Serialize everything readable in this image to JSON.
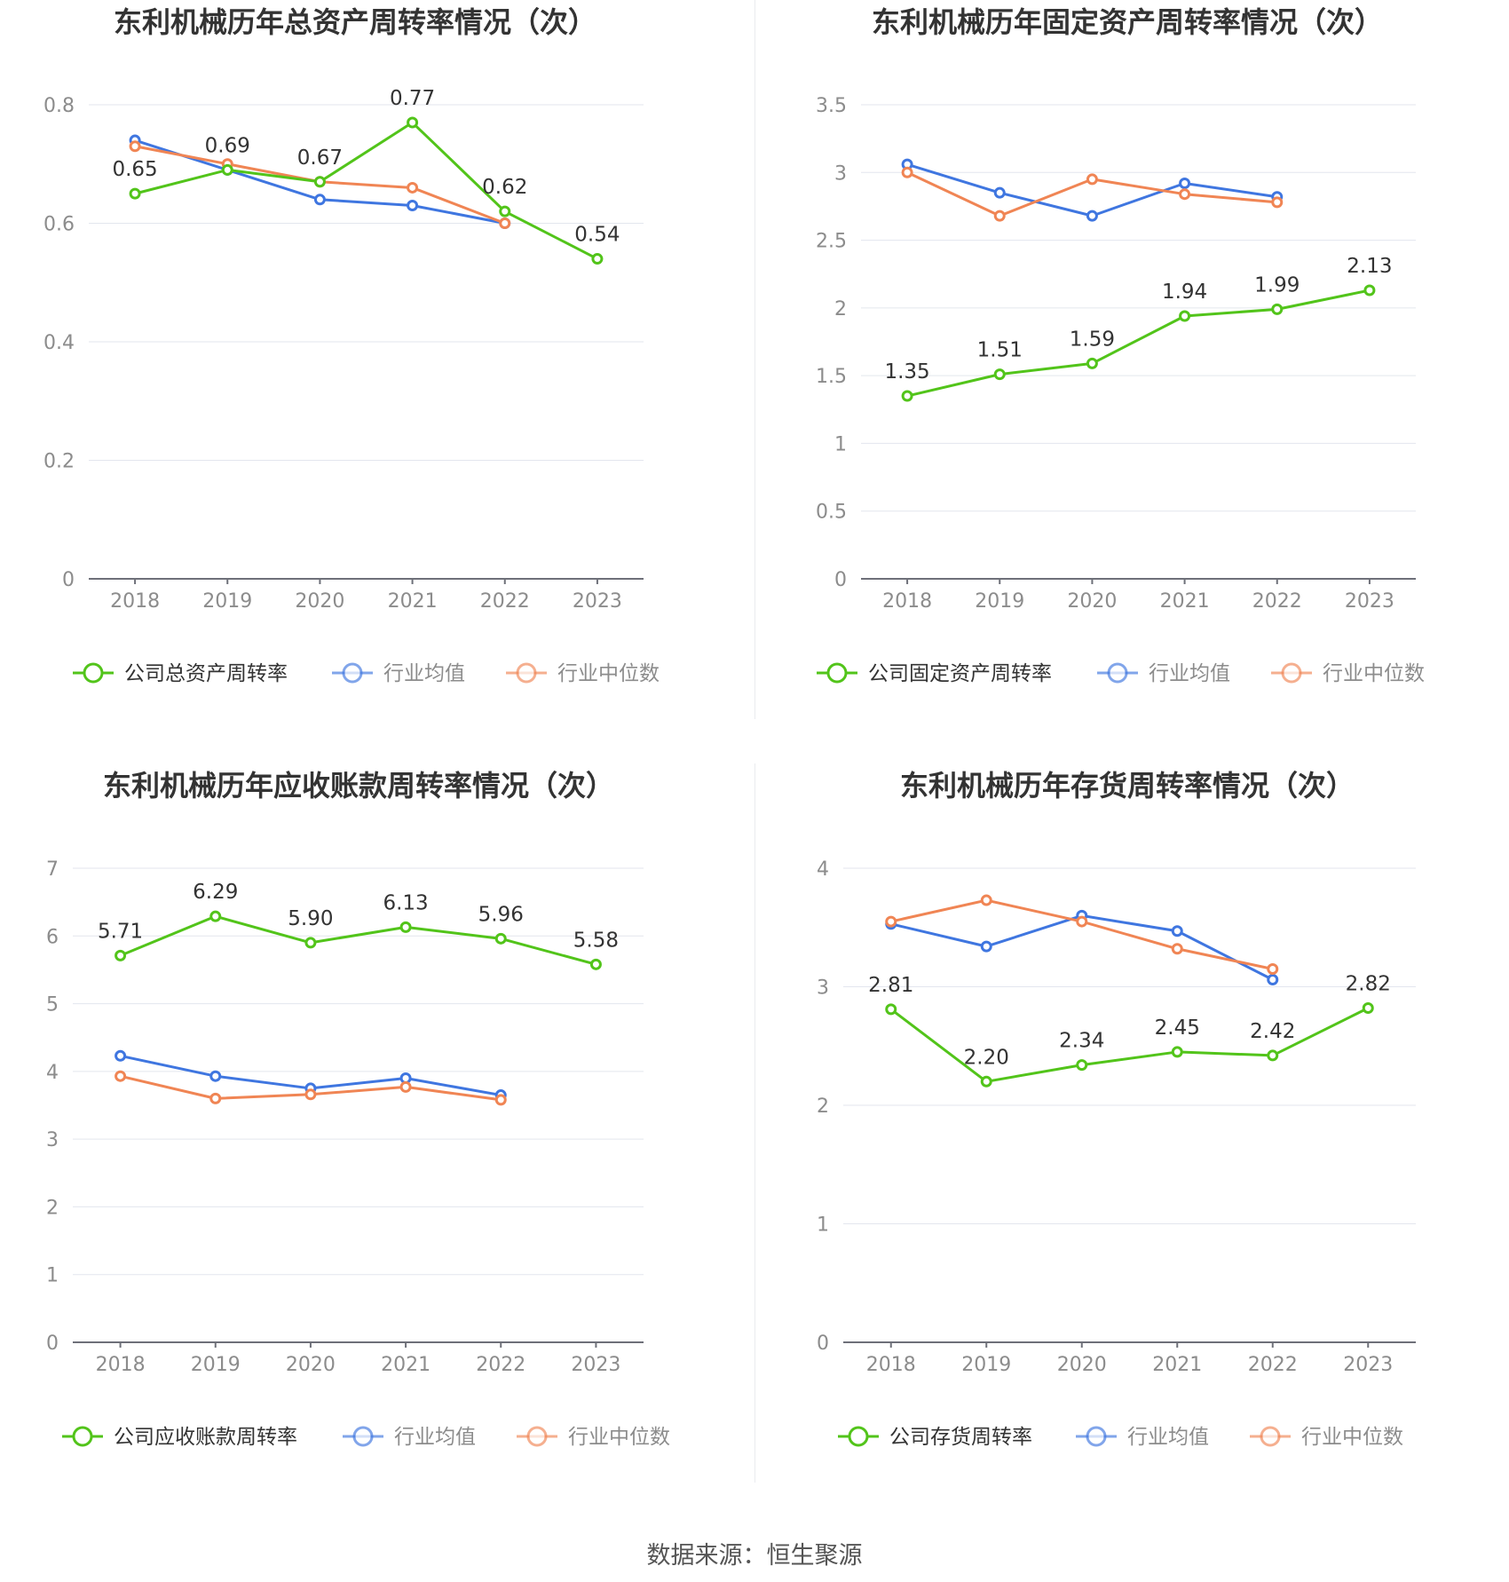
{
  "colors": {
    "company": "#52c41a",
    "industry_avg": "#3f76e0",
    "industry_median": "#f08554"
  },
  "footer": {
    "source": "数据来源：恒生聚源"
  },
  "chart_data": [
    {
      "type": "line",
      "title": "东利机械历年总资产周转率情况（次）",
      "x": [
        "2018",
        "2019",
        "2020",
        "2021",
        "2022",
        "2023"
      ],
      "ylim": [
        0,
        0.8
      ],
      "yticks": [
        0,
        0.2,
        0.4,
        0.6,
        0.8
      ],
      "ytick_labels": [
        "0",
        "0.2",
        "0.4",
        "0.6",
        "0.8"
      ],
      "grid": true,
      "legend_position": "bottom",
      "series": [
        {
          "name": "公司总资产周转率",
          "color": "#52c41a",
          "values": [
            0.65,
            0.69,
            0.67,
            0.77,
            0.62,
            0.54
          ],
          "labels": [
            "0.65",
            "0.69",
            "0.67",
            "0.77",
            "0.62",
            "0.54"
          ]
        },
        {
          "name": "行业均值",
          "color": "#3f76e0",
          "values": [
            0.74,
            0.69,
            0.64,
            0.63,
            0.6,
            null
          ]
        },
        {
          "name": "行业中位数",
          "color": "#f08554",
          "values": [
            0.73,
            0.7,
            0.67,
            0.66,
            0.6,
            null
          ]
        }
      ]
    },
    {
      "type": "line",
      "title": "东利机械历年固定资产周转率情况（次）",
      "x": [
        "2018",
        "2019",
        "2020",
        "2021",
        "2022",
        "2023"
      ],
      "ylim": [
        0,
        3.5
      ],
      "yticks": [
        0,
        0.5,
        1,
        1.5,
        2,
        2.5,
        3,
        3.5
      ],
      "ytick_labels": [
        "0",
        "0.5",
        "1",
        "1.5",
        "2",
        "2.5",
        "3",
        "3.5"
      ],
      "grid": true,
      "legend_position": "bottom",
      "series": [
        {
          "name": "公司固定资产周转率",
          "color": "#52c41a",
          "values": [
            1.35,
            1.51,
            1.59,
            1.94,
            1.99,
            2.13
          ],
          "labels": [
            "1.35",
            "1.51",
            "1.59",
            "1.94",
            "1.99",
            "2.13"
          ]
        },
        {
          "name": "行业均值",
          "color": "#3f76e0",
          "values": [
            3.06,
            2.85,
            2.68,
            2.92,
            2.82,
            null
          ]
        },
        {
          "name": "行业中位数",
          "color": "#f08554",
          "values": [
            3.0,
            2.68,
            2.95,
            2.84,
            2.78,
            null
          ]
        }
      ]
    },
    {
      "type": "line",
      "title": "东利机械历年应收账款周转率情况（次）",
      "x": [
        "2018",
        "2019",
        "2020",
        "2021",
        "2022",
        "2023"
      ],
      "ylim": [
        0,
        7
      ],
      "yticks": [
        0,
        1,
        2,
        3,
        4,
        5,
        6,
        7
      ],
      "ytick_labels": [
        "0",
        "1",
        "2",
        "3",
        "4",
        "5",
        "6",
        "7"
      ],
      "grid": true,
      "legend_position": "bottom",
      "series": [
        {
          "name": "公司应收账款周转率",
          "color": "#52c41a",
          "values": [
            5.71,
            6.29,
            5.9,
            6.13,
            5.96,
            5.58
          ],
          "labels": [
            "5.71",
            "6.29",
            "5.90",
            "6.13",
            "5.96",
            "5.58"
          ]
        },
        {
          "name": "行业均值",
          "color": "#3f76e0",
          "values": [
            4.23,
            3.93,
            3.75,
            3.9,
            3.65,
            null
          ]
        },
        {
          "name": "行业中位数",
          "color": "#f08554",
          "values": [
            3.93,
            3.6,
            3.66,
            3.77,
            3.58,
            null
          ]
        }
      ]
    },
    {
      "type": "line",
      "title": "东利机械历年存货周转率情况（次）",
      "x": [
        "2018",
        "2019",
        "2020",
        "2021",
        "2022",
        "2023"
      ],
      "ylim": [
        0,
        4
      ],
      "yticks": [
        0,
        1,
        2,
        3,
        4
      ],
      "ytick_labels": [
        "0",
        "1",
        "2",
        "3",
        "4"
      ],
      "grid": true,
      "legend_position": "bottom",
      "series": [
        {
          "name": "公司存货周转率",
          "color": "#52c41a",
          "values": [
            2.81,
            2.2,
            2.34,
            2.45,
            2.42,
            2.82
          ],
          "labels": [
            "2.81",
            "2.20",
            "2.34",
            "2.45",
            "2.42",
            "2.82"
          ]
        },
        {
          "name": "行业均值",
          "color": "#3f76e0",
          "values": [
            3.53,
            3.34,
            3.6,
            3.47,
            3.06,
            null
          ]
        },
        {
          "name": "行业中位数",
          "color": "#f08554",
          "values": [
            3.55,
            3.73,
            3.55,
            3.32,
            3.15,
            null
          ]
        }
      ]
    }
  ]
}
